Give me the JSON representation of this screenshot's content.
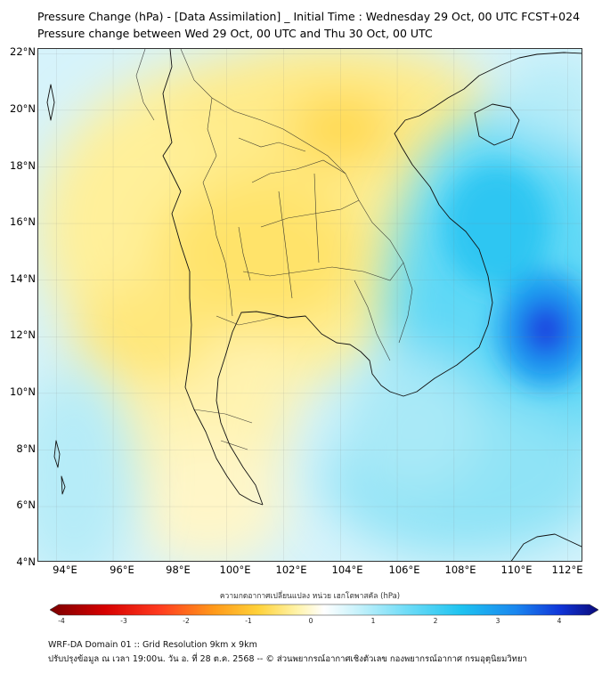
{
  "title_line1": "Pressure Change (hPa) - [Data Assimilation] _ Initial Time : Wednesday 29 Oct, 00 UTC FCST+024",
  "title_line2": "Pressure change between Wed 29 Oct, 00 UTC and Thu 30 Oct, 00 UTC",
  "lat_labels": [
    "22°N",
    "20°N",
    "18°N",
    "16°N",
    "14°N",
    "12°N",
    "10°N",
    "8°N",
    "6°N",
    "4°N"
  ],
  "lon_labels": [
    "94°E",
    "96°E",
    "98°E",
    "100°E",
    "102°E",
    "104°E",
    "106°E",
    "108°E",
    "110°E",
    "112°E"
  ],
  "colorbar": {
    "label": "ความกดอากาศเปลี่ยนแปลง หน่วย เฮกโตพาสคัล (hPa)",
    "ticks": [
      "-4",
      "-3",
      "-2",
      "-1",
      "0",
      "1",
      "2",
      "3",
      "4"
    ],
    "min": -4,
    "max": 4
  },
  "footer_line1": "WRF-DA Domain 01 :: Grid Resolution 9km x 9km",
  "footer_line2": "ปรับปรุงข้อมูล ณ เวลา 19:00น. วัน อ. ที่ 28 ต.ค. 2568 -- © ส่วนพยากรณ์อากาศเชิงตัวเลข กองพยากรณ์อากาศ กรมอุตุนิยมวิทยา",
  "colors": {
    "increase_strong": "#0a1fd8",
    "increase": "#1ec8f0",
    "neutral": "#ffffff",
    "decrease": "#ffe36a",
    "decrease_strong": "#8b0000"
  }
}
